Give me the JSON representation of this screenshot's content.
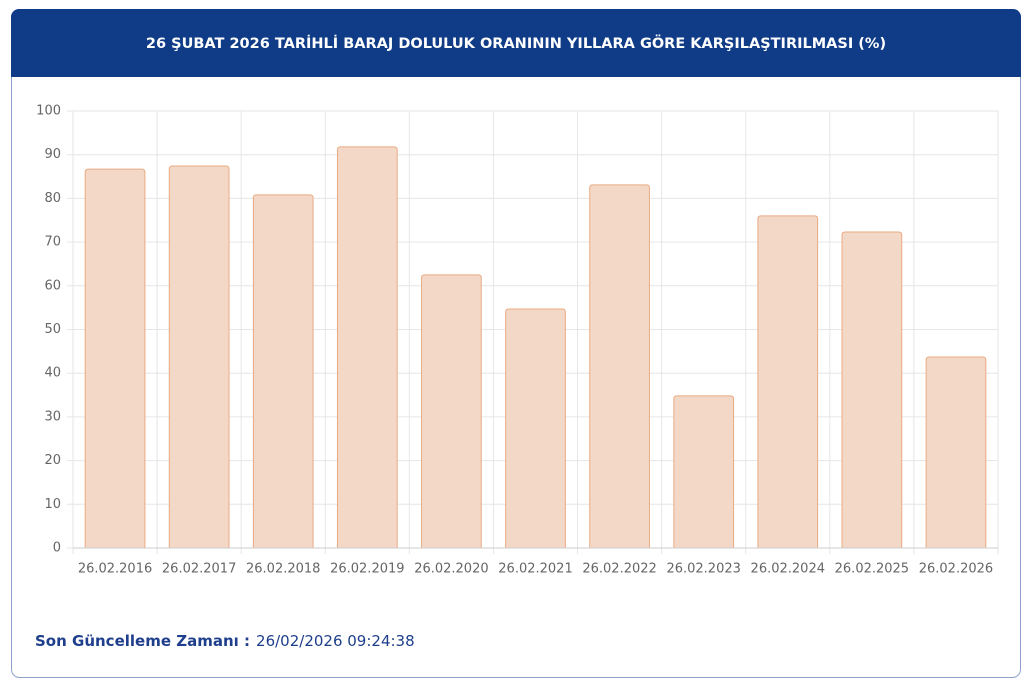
{
  "chart_data": {
    "type": "bar",
    "title": "26 ŞUBAT 2026 TARİHLİ BARAJ DOLULUK ORANININ YILLARA GÖRE KARŞILAŞTIRILMASI (%)",
    "categories": [
      "26.02.2016",
      "26.02.2017",
      "26.02.2018",
      "26.02.2019",
      "26.02.2020",
      "26.02.2021",
      "26.02.2022",
      "26.02.2023",
      "26.02.2024",
      "26.02.2025",
      "26.02.2026"
    ],
    "values": [
      86.7,
      87.4,
      80.8,
      91.8,
      62.5,
      54.7,
      83.1,
      34.8,
      76.0,
      72.3,
      43.7
    ],
    "color": "#f3d8c7",
    "ylim": [
      0,
      100
    ],
    "yticks": [
      0,
      10,
      20,
      30,
      40,
      50,
      60,
      70,
      80,
      90,
      100
    ],
    "grid": true
  },
  "footer": {
    "label": "Son Güncelleme Zamanı :",
    "value": "26/02/2026 09:24:38"
  }
}
